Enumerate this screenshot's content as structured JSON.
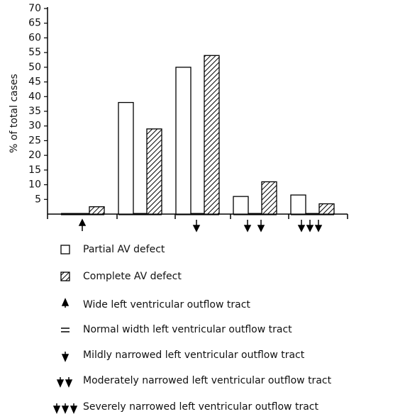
{
  "chart_data": {
    "type": "bar",
    "y_label": "% of total cases",
    "categories": [
      null,
      null,
      null,
      null,
      null
    ],
    "series": [
      {
        "name": "Partial AV defect",
        "color": "#ffffff",
        "hatch": false,
        "values": [
          0,
          38,
          50,
          6,
          6.5
        ]
      },
      {
        "name": "Complete AV defect",
        "color": "#000000",
        "hatch": true,
        "values": [
          2.5,
          29,
          54,
          11,
          3.5
        ]
      }
    ],
    "ylim": [
      0,
      70
    ],
    "yticks": [
      5,
      10,
      15,
      20,
      25,
      30,
      35,
      40,
      45,
      50,
      55,
      60,
      65,
      70
    ],
    "annotations": [
      "Wide left ventricular outflow tract",
      "Normal width left ventricular outflow tract",
      "Mildly narrowed left ventricular outflow tract",
      "Moderately narrowed left ventricular outflow tract",
      "Severely narrowed left ventricular outflow tract"
    ]
  }
}
